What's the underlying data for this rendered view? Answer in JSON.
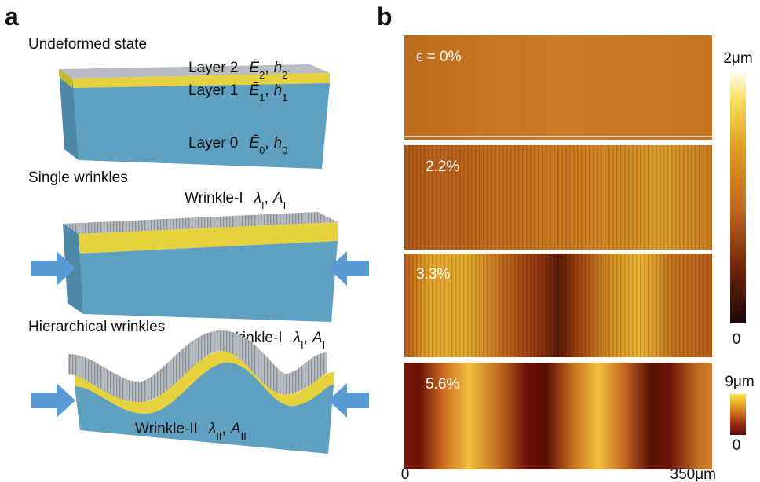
{
  "panel_a": {
    "label": "a",
    "undeformed": {
      "title": "Undeformed state",
      "layers": [
        {
          "name": "Layer 2",
          "modulus": {
            "symbol": "Ē",
            "sub": "2"
          },
          "separator": ",",
          "thickness": {
            "symbol": "h",
            "sub": "2"
          }
        },
        {
          "name": "Layer 1",
          "modulus": {
            "symbol": "Ē",
            "sub": "1"
          },
          "separator": ",",
          "thickness": {
            "symbol": "h",
            "sub": "1"
          }
        },
        {
          "name": "Layer 0",
          "modulus": {
            "symbol": "Ē",
            "sub": "0"
          },
          "separator": ",",
          "thickness": {
            "symbol": "h",
            "sub": "0"
          }
        }
      ]
    },
    "single": {
      "title": "Single wrinkles",
      "wrinkle": {
        "name": "Wrinkle-I",
        "wavelength": {
          "symbol": "λ",
          "sub": "I"
        },
        "separator": ",",
        "amplitude": {
          "symbol": "A",
          "sub": "I"
        }
      }
    },
    "hierarchical": {
      "title": "Hierarchical wrinkles",
      "wrinkles": [
        {
          "name": "Wrinkle-I",
          "wavelength": {
            "symbol": "λ",
            "sub": "I"
          },
          "separator": ",",
          "amplitude": {
            "symbol": "A",
            "sub": "I"
          }
        },
        {
          "name": "Wrinkle-II",
          "wavelength": {
            "symbol": "λ",
            "sub": "II"
          },
          "separator": ",",
          "amplitude": {
            "symbol": "A",
            "sub": "II"
          }
        }
      ]
    }
  },
  "panel_b": {
    "label": "b",
    "images": [
      {
        "strain_label": "ϵ = 0%"
      },
      {
        "strain_label": "2.2%"
      },
      {
        "strain_label": "3.3%"
      },
      {
        "strain_label": "5.6%"
      }
    ],
    "colorbars": [
      {
        "max_label": "2μm",
        "min_label": "0"
      },
      {
        "max_label": "9μm",
        "min_label": "0"
      }
    ],
    "x_axis": {
      "min_label": "0",
      "max_label": "350μm"
    }
  }
}
